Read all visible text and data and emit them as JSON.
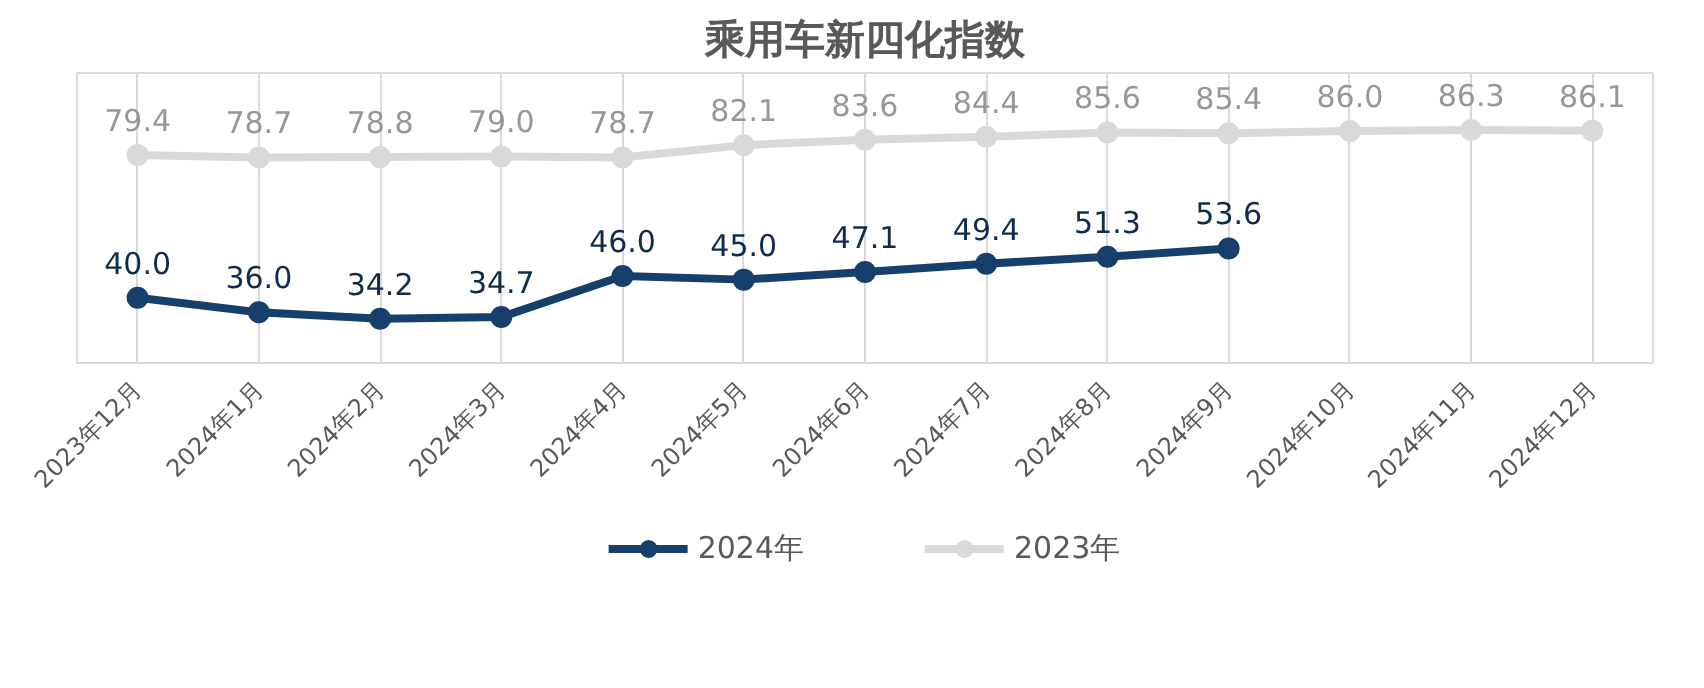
{
  "chart_data": {
    "type": "line",
    "title": "乘用车新四化指数",
    "categories": [
      "2023年12月",
      "2024年1月",
      "2024年2月",
      "2024年3月",
      "2024年4月",
      "2024年5月",
      "2024年6月",
      "2024年7月",
      "2024年8月",
      "2024年9月",
      "2024年10月",
      "2024年11月",
      "2024年12月"
    ],
    "series": [
      {
        "name": "2024年",
        "color": "#173f6b",
        "values": [
          40.0,
          36.0,
          34.2,
          34.7,
          46.0,
          45.0,
          47.1,
          49.4,
          51.3,
          53.6,
          null,
          null,
          null
        ],
        "value_labels": [
          "40.0",
          "36.0",
          "34.2",
          "34.7",
          "46.0",
          "45.0",
          "47.1",
          "49.4",
          "51.3",
          "53.6",
          null,
          null,
          null
        ]
      },
      {
        "name": "2023年",
        "color": "#d9d9d9",
        "values": [
          79.4,
          78.7,
          78.8,
          79.0,
          78.7,
          82.1,
          83.6,
          84.4,
          85.6,
          85.4,
          86.0,
          86.3,
          86.1
        ],
        "value_labels": [
          "79.4",
          "78.7",
          "78.8",
          "79.0",
          "78.7",
          "82.1",
          "83.6",
          "84.4",
          "85.6",
          "85.4",
          "86.0",
          "86.3",
          "86.1"
        ]
      }
    ],
    "ylim": [
      22,
      102
    ],
    "tick_labels": "x",
    "grid": "x",
    "legend": "bottom",
    "marker": "circle",
    "line_style": "solid",
    "data_labels": true
  }
}
